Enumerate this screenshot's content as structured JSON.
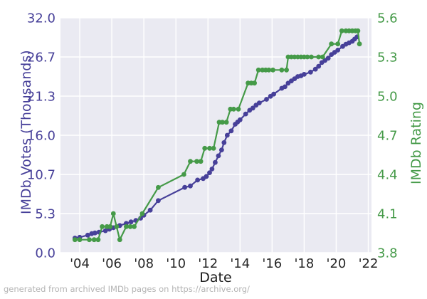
{
  "figure": {
    "caption": "generated from archived IMDb pages on https://archive.org/"
  },
  "chart_data": {
    "type": "line",
    "title": "",
    "xlabel": "Date",
    "grid": true,
    "legend": "none",
    "plot_background": "#eaeaf2",
    "gridline_color": "#ffffff",
    "x_axis": {
      "label": "Date",
      "range": [
        2002.8,
        2022.2
      ],
      "tick_years": [
        2004,
        2006,
        2008,
        2010,
        2012,
        2014,
        2016,
        2018,
        2020,
        2022
      ],
      "tick_labels": [
        "'04",
        "'06",
        "'08",
        "'10",
        "'12",
        "'14",
        "'16",
        "'18",
        "'20",
        "'22"
      ],
      "tick_color": "#262626"
    },
    "left_axis": {
      "label": "IMDb Votes (Thousands)",
      "color": "#474099",
      "range": [
        0,
        32
      ],
      "tick_values": [
        0,
        5.333,
        10.667,
        16,
        21.333,
        26.667,
        32
      ],
      "tick_labels": [
        "0.0",
        "5.3",
        "10.7",
        "16.0",
        "21.3",
        "26.7",
        "32.0"
      ]
    },
    "right_axis": {
      "label": "IMDb Rating",
      "color": "#459a48",
      "range": [
        3.8,
        5.6
      ],
      "tick_values": [
        3.8,
        4.1,
        4.4,
        4.7,
        5.0,
        5.3,
        5.6
      ],
      "tick_labels": [
        "3.8",
        "4.1",
        "4.4",
        "4.7",
        "5.0",
        "5.3",
        "5.6"
      ]
    },
    "series": [
      {
        "name": "IMDb Votes (Thousands)",
        "axis": "left",
        "color": "#474099",
        "x": [
          2003.7,
          2004.0,
          2004.5,
          2004.75,
          2004.95,
          2005.2,
          2005.6,
          2005.85,
          2006.1,
          2006.5,
          2006.9,
          2007.2,
          2007.5,
          2007.8,
          2008.0,
          2008.4,
          2008.9,
          2010.55,
          2010.9,
          2011.35,
          2011.7,
          2011.9,
          2012.1,
          2012.25,
          2012.45,
          2012.65,
          2012.85,
          2013.0,
          2013.2,
          2013.45,
          2013.7,
          2013.85,
          2014.0,
          2014.35,
          2014.6,
          2014.8,
          2015.0,
          2015.2,
          2015.65,
          2015.9,
          2016.1,
          2016.6,
          2016.8,
          2017.0,
          2017.2,
          2017.4,
          2017.6,
          2017.8,
          2018.0,
          2018.4,
          2018.7,
          2018.9,
          2019.1,
          2019.3,
          2019.5,
          2019.7,
          2019.9,
          2020.1,
          2020.4,
          2020.6,
          2020.8,
          2021.0,
          2021.15,
          2021.3
        ],
        "values": [
          2.0,
          2.1,
          2.4,
          2.6,
          2.7,
          2.8,
          3.0,
          3.2,
          3.4,
          3.7,
          4.0,
          4.2,
          4.4,
          4.7,
          5.1,
          5.8,
          7.1,
          8.9,
          9.1,
          9.9,
          10.1,
          10.4,
          10.9,
          11.4,
          12.3,
          13.2,
          14.0,
          15.0,
          16.0,
          16.6,
          17.5,
          17.8,
          18.1,
          18.9,
          19.4,
          19.7,
          20.1,
          20.4,
          20.9,
          21.3,
          21.6,
          22.4,
          22.6,
          23.1,
          23.4,
          23.7,
          24.0,
          24.1,
          24.3,
          24.6,
          25.0,
          25.4,
          25.9,
          26.2,
          26.5,
          27.0,
          27.3,
          27.6,
          28.1,
          28.4,
          28.6,
          28.8,
          29.1,
          29.4
        ]
      },
      {
        "name": "IMDb Rating",
        "axis": "right",
        "color": "#459a48",
        "x": [
          2003.7,
          2004.0,
          2004.6,
          2004.9,
          2005.15,
          2005.4,
          2005.7,
          2005.9,
          2006.1,
          2006.3,
          2006.5,
          2006.9,
          2007.15,
          2007.4,
          2007.9,
          2008.9,
          2010.5,
          2010.9,
          2011.3,
          2011.55,
          2011.8,
          2012.1,
          2012.35,
          2012.7,
          2012.9,
          2013.15,
          2013.4,
          2013.6,
          2013.9,
          2014.5,
          2014.7,
          2014.9,
          2015.15,
          2015.4,
          2015.6,
          2015.8,
          2016.05,
          2016.6,
          2016.9,
          2017.0,
          2017.2,
          2017.4,
          2017.6,
          2017.8,
          2018.0,
          2018.2,
          2018.45,
          2018.9,
          2019.15,
          2019.7,
          2020.1,
          2020.35,
          2020.6,
          2020.8,
          2021.0,
          2021.2,
          2021.35,
          2021.45
        ],
        "values": [
          3.9,
          3.9,
          3.9,
          3.9,
          3.9,
          4.0,
          4.0,
          4.0,
          4.1,
          4.0,
          3.9,
          4.0,
          4.0,
          4.0,
          4.1,
          4.3,
          4.4,
          4.5,
          4.5,
          4.5,
          4.6,
          4.6,
          4.6,
          4.8,
          4.8,
          4.8,
          4.9,
          4.9,
          4.9,
          5.1,
          5.1,
          5.1,
          5.2,
          5.2,
          5.2,
          5.2,
          5.2,
          5.2,
          5.2,
          5.3,
          5.3,
          5.3,
          5.3,
          5.3,
          5.3,
          5.3,
          5.3,
          5.3,
          5.3,
          5.4,
          5.4,
          5.5,
          5.5,
          5.5,
          5.5,
          5.5,
          5.5,
          5.4
        ]
      }
    ]
  }
}
